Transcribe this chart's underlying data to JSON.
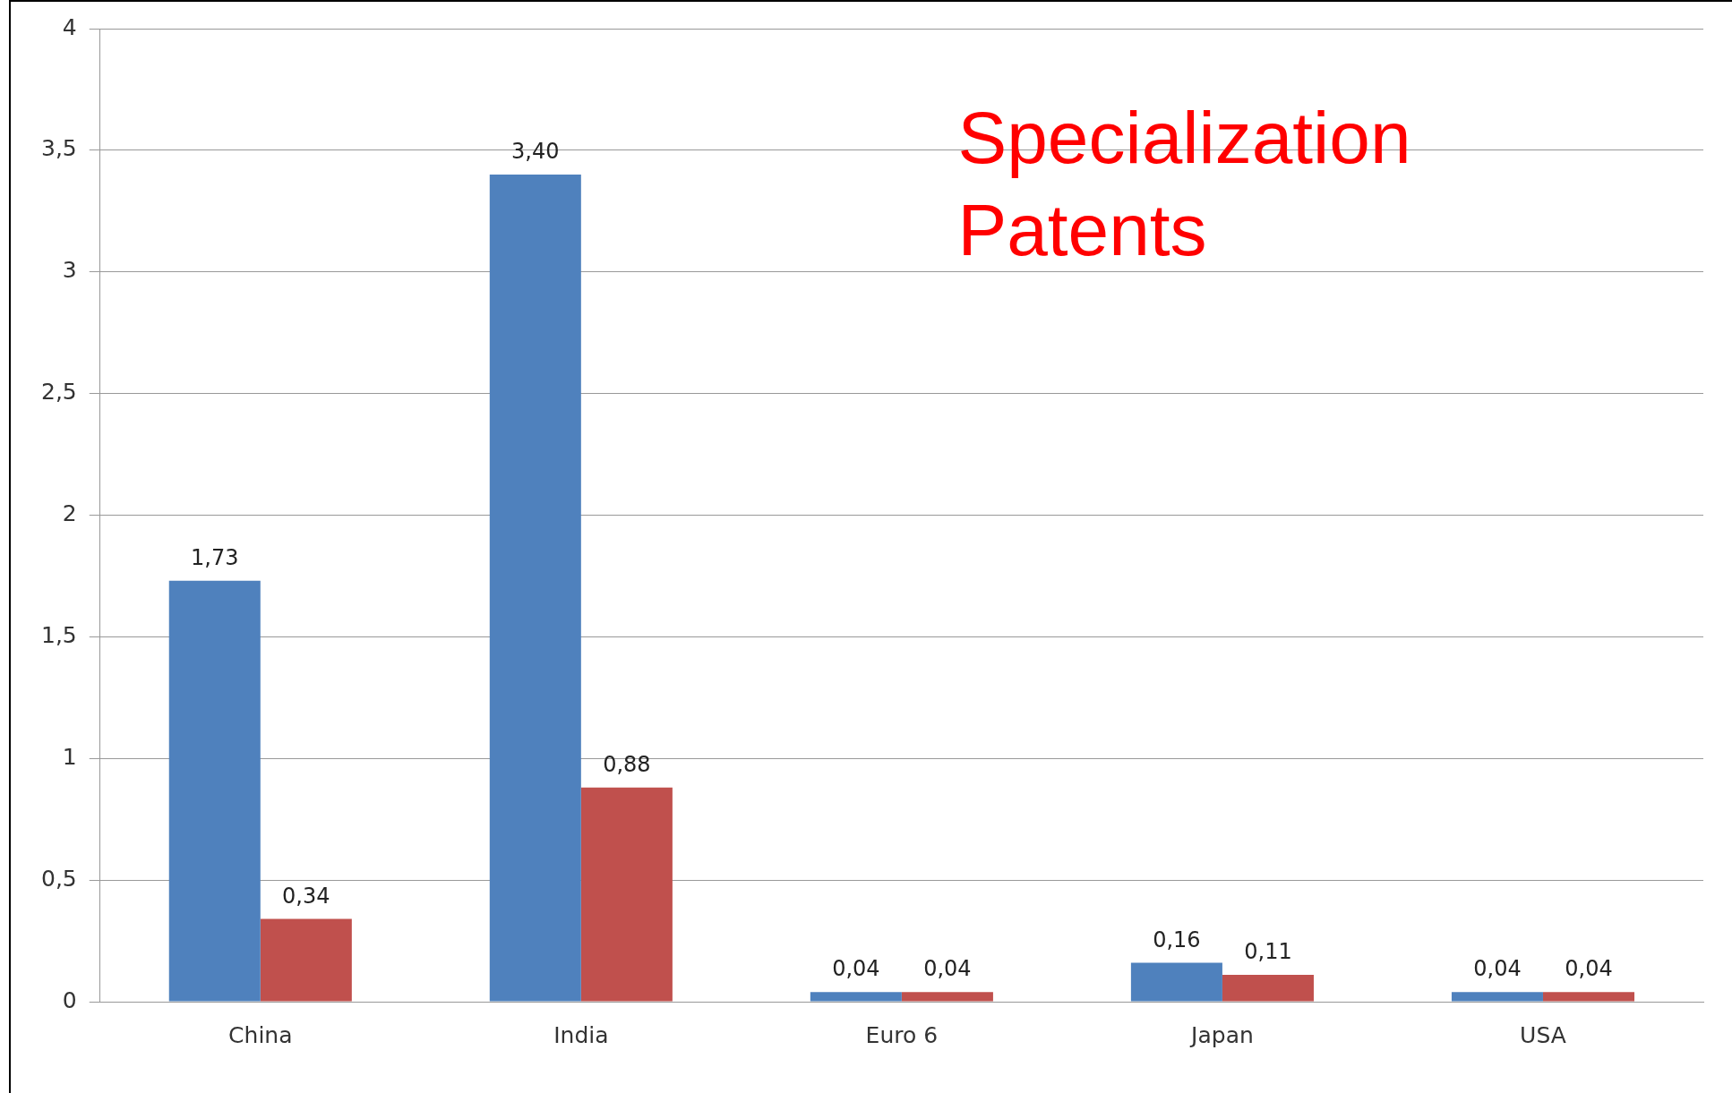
{
  "chart_data": {
    "type": "bar",
    "categories": [
      "China",
      "India",
      "Euro 6",
      "Japan",
      "USA"
    ],
    "series": [
      {
        "color": "#4f81bd",
        "values": [
          1.73,
          3.4,
          0.04,
          0.16,
          0.04
        ],
        "value_labels": [
          "1,73",
          "3,40",
          "0,04",
          "0,16",
          "0,04"
        ]
      },
      {
        "color": "#c0504d",
        "values": [
          0.34,
          0.88,
          0.04,
          0.11,
          0.04
        ],
        "value_labels": [
          "0,34",
          "0,88",
          "0,04",
          "0,11",
          "0,04"
        ]
      }
    ],
    "ylim": [
      0,
      4
    ],
    "yticks": [
      0,
      {
        "value": 0.5,
        "label": "0,5"
      },
      1,
      {
        "value": 1.5,
        "label": "1,5"
      },
      2,
      {
        "value": 2.5,
        "label": "2,5"
      },
      3,
      {
        "value": 3.5,
        "label": "3,5"
      },
      4
    ],
    "grid": "y",
    "legend": false,
    "annotations": [
      "Specialization\nPatents"
    ]
  }
}
